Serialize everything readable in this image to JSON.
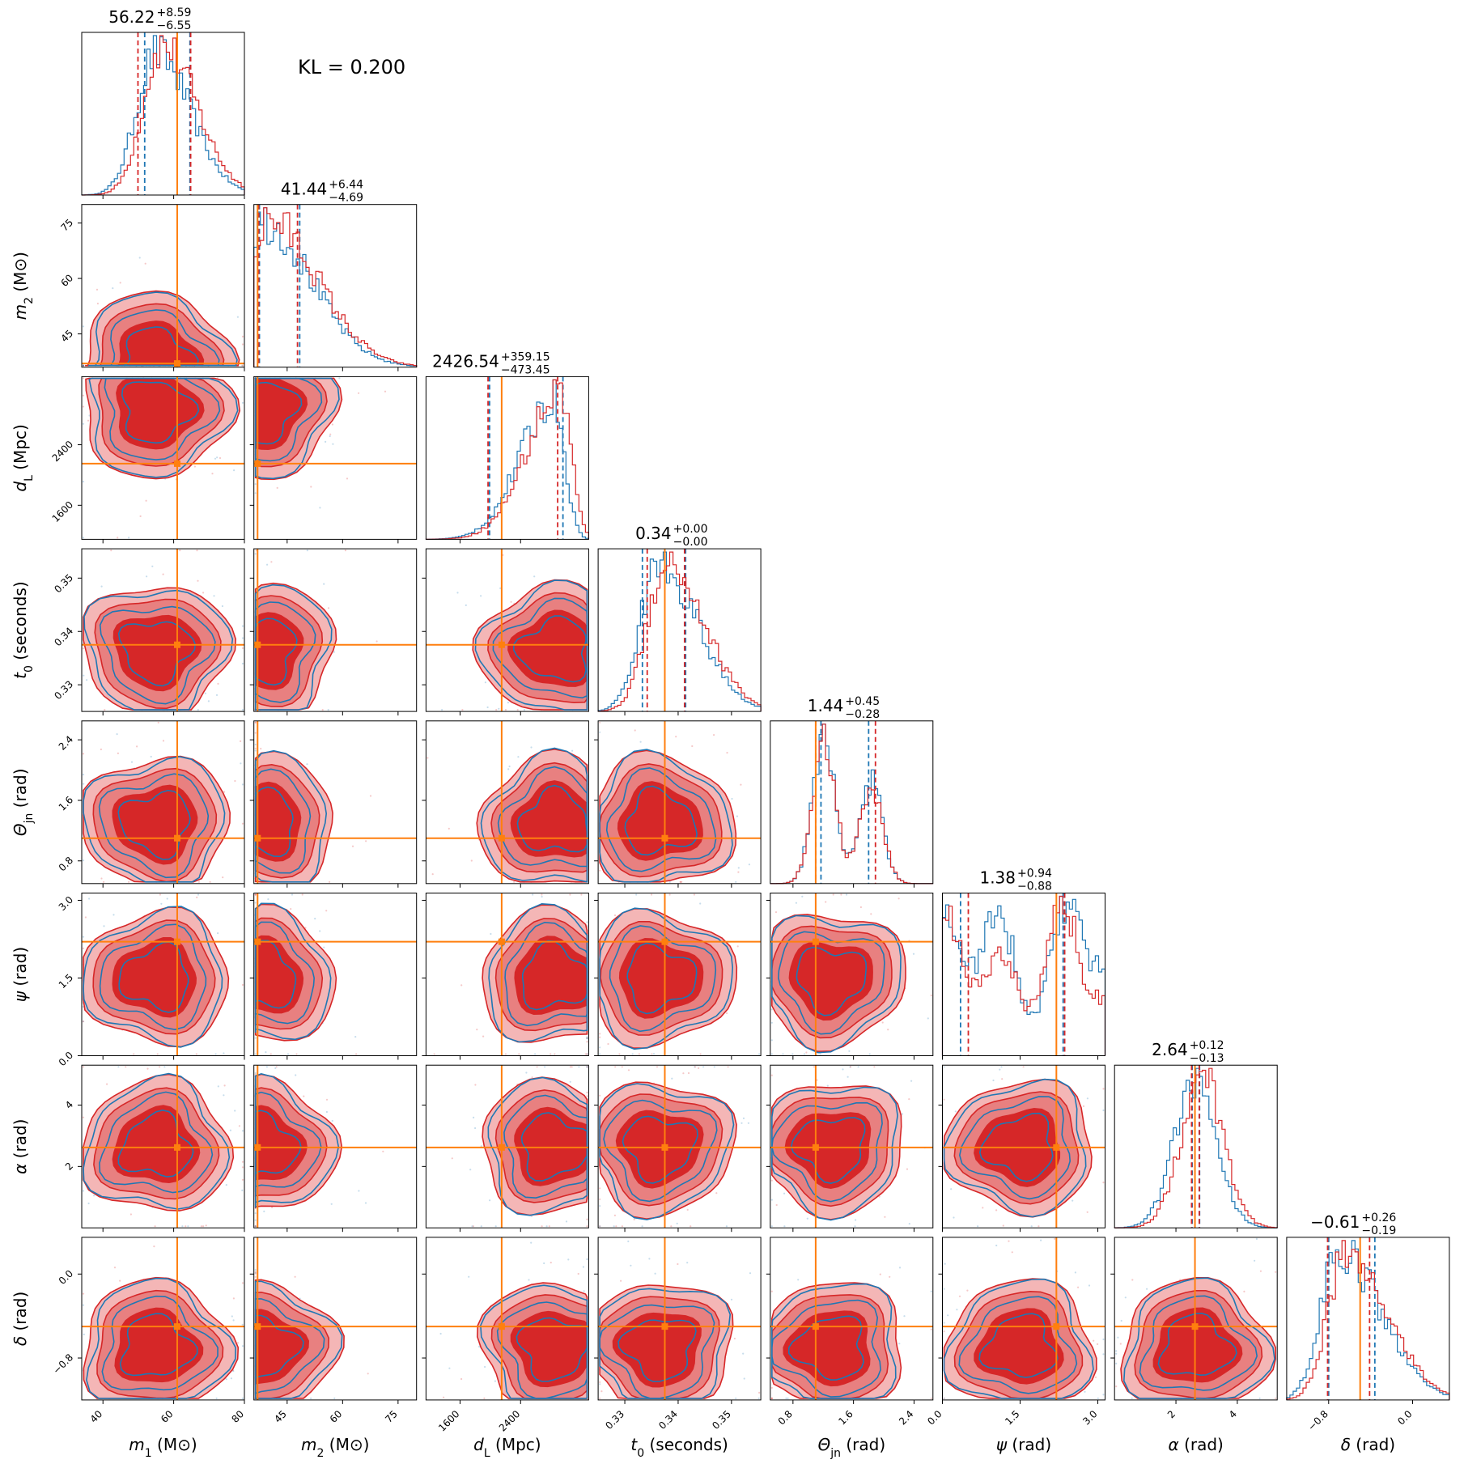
{
  "kl_text": "KL = 0.200",
  "colors": {
    "blue": "#1f77b4",
    "red": "#d62728",
    "truth": "#ff7f0e"
  },
  "chart_data": {
    "type": "corner",
    "series": [
      {
        "name": "",
        "color": "#1f77b4"
      },
      {
        "name": "",
        "color": "#d62728"
      }
    ],
    "parameters": [
      {
        "key": "m1",
        "label_var": "m",
        "label_sub": "1",
        "label_unit": "(M⊙)",
        "range": [
          34,
          80
        ],
        "truth": 61,
        "ticks": [
          40,
          60,
          80
        ],
        "tick_labels": [
          "40",
          "60",
          "80"
        ],
        "title": {
          "median": "56.22",
          "plus": "+8.59",
          "minus": "−6.55"
        },
        "quantiles": {
          "blue": [
            51.8,
            64.6
          ],
          "red": [
            49.9,
            64.8
          ]
        },
        "peak": 55,
        "spread": 7,
        "skew": 0.4
      },
      {
        "key": "m2",
        "label_var": "m",
        "label_sub": "2",
        "label_unit": "(M⊙)",
        "range": [
          36,
          80
        ],
        "truth": 37,
        "ticks": [
          45,
          60,
          75
        ],
        "tick_labels": [
          "45",
          "60",
          "75"
        ],
        "title": {
          "median": "41.44",
          "plus": "+6.44",
          "minus": "−4.69"
        },
        "quantiles": {
          "blue": [
            37.5,
            48.4
          ],
          "red": [
            37.3,
            47.8
          ]
        },
        "peak": 38,
        "spread": 9,
        "skew": 0.8
      },
      {
        "key": "dL",
        "label_var": "d",
        "label_sub": "L",
        "label_unit": "(Mpc)",
        "range": [
          1150,
          3300
        ],
        "truth": 2150,
        "ticks": [
          1600,
          2400
        ],
        "tick_labels": [
          "1600",
          "2400"
        ],
        "title": {
          "median": "2426.54",
          "plus": "+359.15",
          "minus": "−473.45"
        },
        "quantiles": {
          "blue": [
            1990,
            2960
          ],
          "red": [
            1970,
            2890
          ]
        },
        "peak": 2850,
        "spread": 500,
        "skew": -0.6
      },
      {
        "key": "t0",
        "label_var": "t",
        "label_sub": "0",
        "label_unit": "(seconds)",
        "range": [
          0.325,
          0.3555
        ],
        "truth": 0.3375,
        "ticks": [
          0.33,
          0.34,
          0.35
        ],
        "tick_labels": [
          "0.33",
          "0.34",
          "0.35"
        ],
        "title": {
          "median": "0.34",
          "plus": "+0.00",
          "minus": "−0.00"
        },
        "quantiles": {
          "blue": [
            0.3333,
            0.3414
          ],
          "red": [
            0.3342,
            0.3412
          ]
        },
        "peak": 0.3365,
        "spread": 0.0025,
        "skew": 0.5
      },
      {
        "key": "thetajn",
        "label_var": "Θ",
        "label_sub": "jn",
        "label_unit": "(rad)",
        "range": [
          0.5,
          2.65
        ],
        "truth": 1.1,
        "ticks": [
          0.8,
          1.6,
          2.4
        ],
        "tick_labels": [
          "0.8",
          "1.6",
          "2.4"
        ],
        "title": {
          "median": "1.44",
          "plus": "+0.45",
          "minus": "−0.28"
        },
        "quantiles": {
          "blue": [
            1.17,
            1.8
          ],
          "red": [
            1.1,
            1.89
          ]
        },
        "peak": 1.3,
        "spread": 0.25,
        "skew": 0.5
      },
      {
        "key": "psi",
        "label_var": "ψ",
        "label_sub": "",
        "label_unit": "(rad)",
        "range": [
          0,
          3.14
        ],
        "truth": 2.2,
        "ticks": [
          0,
          1.5,
          3.0
        ],
        "tick_labels": [
          "0.0",
          "1.5",
          "3.0"
        ],
        "title": {
          "median": "1.38",
          "plus": "+0.94",
          "minus": "−0.88"
        },
        "quantiles": {
          "blue": [
            0.35,
            2.33
          ],
          "red": [
            0.5,
            2.36
          ]
        },
        "peak": 1.5,
        "spread": 1.2,
        "skew": 0
      },
      {
        "key": "alpha",
        "label_var": "α",
        "label_sub": "",
        "label_unit": "(rad)",
        "range": [
          0,
          5.3
        ],
        "truth": 2.62,
        "ticks": [
          2,
          4
        ],
        "tick_labels": [
          "2",
          "4"
        ],
        "title": {
          "median": "2.64",
          "plus": "+0.12",
          "minus": "−0.13"
        },
        "quantiles": {
          "blue": [
            2.53,
            2.77
          ],
          "red": [
            2.51,
            2.76
          ]
        },
        "peak": 2.64,
        "spread": 0.1,
        "skew": 0
      },
      {
        "key": "delta",
        "label_var": "δ",
        "label_sub": "",
        "label_unit": "(rad)",
        "range": [
          -1.2,
          0.35
        ],
        "truth": -0.5,
        "ticks": [
          -0.8,
          0.0
        ],
        "tick_labels": [
          "−0.8",
          "0.0"
        ],
        "title": {
          "median": "−0.61",
          "plus": "+0.26",
          "minus": "−0.19"
        },
        "quantiles": {
          "blue": [
            -0.8,
            -0.36
          ],
          "red": [
            -0.81,
            -0.41
          ]
        },
        "peak": -0.7,
        "spread": 0.15,
        "skew": 0.6
      }
    ]
  }
}
